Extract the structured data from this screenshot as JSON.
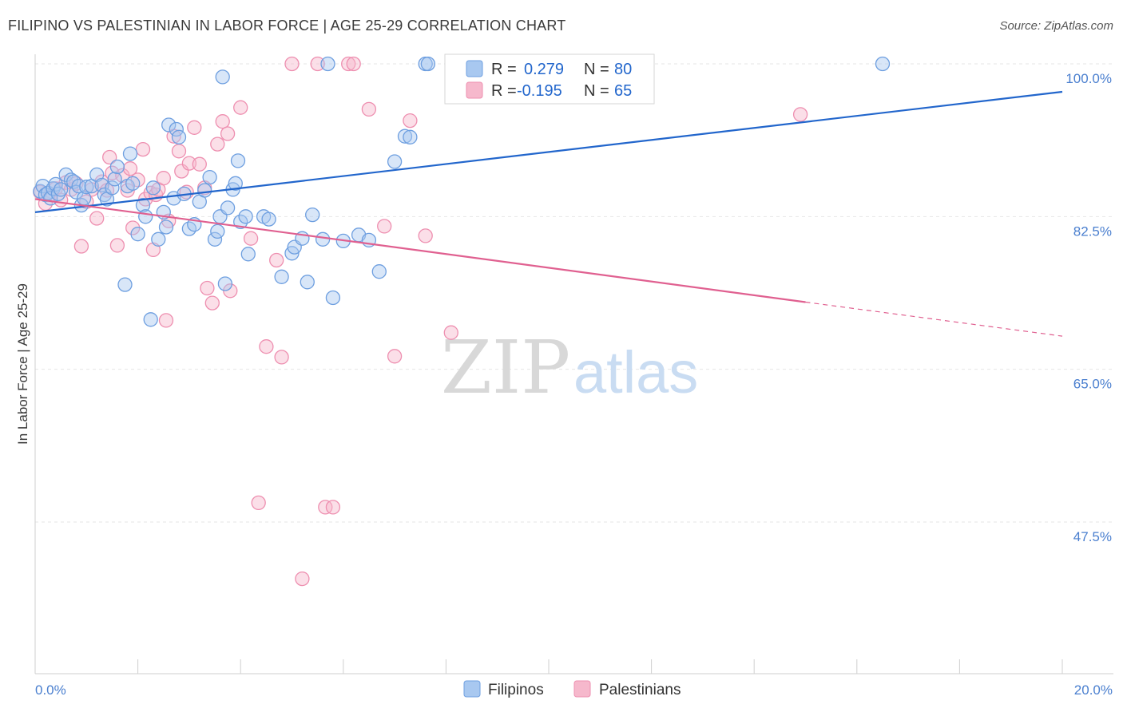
{
  "title": "FILIPINO VS PALESTINIAN IN LABOR FORCE | AGE 25-29 CORRELATION CHART",
  "source": "Source: ZipAtlas.com",
  "watermark": {
    "zip": "ZIP",
    "atlas": "atlas"
  },
  "colors": {
    "filipinos_fill": "#a8c8f0",
    "filipinos_stroke": "#6e9fe0",
    "filipinos_line": "#2266cc",
    "palestinians_fill": "#f6b8cc",
    "palestinians_stroke": "#ee8fb0",
    "palestinians_line": "#e06090",
    "tick_text": "#4a7fcf",
    "grid": "#e6e6e6"
  },
  "legend": {
    "rows": [
      {
        "r_label": "R =",
        "r_value": "0.279",
        "n_label": "N =",
        "n_value": "80"
      },
      {
        "r_label": "R =",
        "r_value": "-0.195",
        "n_label": "N =",
        "n_value": "65"
      }
    ]
  },
  "chart_data": {
    "type": "scatter",
    "title": "FILIPINO VS PALESTINIAN IN LABOR FORCE | AGE 25-29 CORRELATION CHART",
    "xlabel": "",
    "ylabel": "In Labor Force | Age 25-29",
    "xlim": [
      0,
      20
    ],
    "ylim": [
      32,
      101.5
    ],
    "x_tick_labels": [
      {
        "value": 0,
        "label": "0.0%"
      },
      {
        "value": 20,
        "label": "20.0%"
      }
    ],
    "y_tick_labels": [
      {
        "value": 100,
        "label": "100.0%"
      },
      {
        "value": 82.5,
        "label": "82.5%"
      },
      {
        "value": 65,
        "label": "65.0%"
      },
      {
        "value": 47.5,
        "label": "47.5%"
      }
    ],
    "grid": true,
    "legend_position": "top-center",
    "series": [
      {
        "name": "Filipinos",
        "stats": {
          "R": 0.279,
          "N": 80
        },
        "trend": {
          "x0": 0,
          "y0": 83.0,
          "x1": 20,
          "y1": 96.8
        },
        "points": [
          [
            0.1,
            85.4
          ],
          [
            0.15,
            86.0
          ],
          [
            0.2,
            85.0
          ],
          [
            0.25,
            85.2
          ],
          [
            0.3,
            84.6
          ],
          [
            0.35,
            85.7
          ],
          [
            0.4,
            86.2
          ],
          [
            0.45,
            85.1
          ],
          [
            0.5,
            85.6
          ],
          [
            0.6,
            87.3
          ],
          [
            0.7,
            86.7
          ],
          [
            0.75,
            86.5
          ],
          [
            0.8,
            85.3
          ],
          [
            0.85,
            86.0
          ],
          [
            0.9,
            83.8
          ],
          [
            0.95,
            84.6
          ],
          [
            1.0,
            85.9
          ],
          [
            1.1,
            86.0
          ],
          [
            1.2,
            87.3
          ],
          [
            1.3,
            86.1
          ],
          [
            1.35,
            85.0
          ],
          [
            1.4,
            84.5
          ],
          [
            1.5,
            85.8
          ],
          [
            1.55,
            86.8
          ],
          [
            1.6,
            88.2
          ],
          [
            1.75,
            74.7
          ],
          [
            1.8,
            86.0
          ],
          [
            1.85,
            89.7
          ],
          [
            1.9,
            86.3
          ],
          [
            2.0,
            80.5
          ],
          [
            2.1,
            83.8
          ],
          [
            2.15,
            82.5
          ],
          [
            2.25,
            70.7
          ],
          [
            2.3,
            85.8
          ],
          [
            2.4,
            79.9
          ],
          [
            2.5,
            83.0
          ],
          [
            2.55,
            81.3
          ],
          [
            2.6,
            93.0
          ],
          [
            2.7,
            84.6
          ],
          [
            2.75,
            92.5
          ],
          [
            2.8,
            91.6
          ],
          [
            2.9,
            85.1
          ],
          [
            3.0,
            81.1
          ],
          [
            3.1,
            81.6
          ],
          [
            3.2,
            84.2
          ],
          [
            3.3,
            85.5
          ],
          [
            3.4,
            87.0
          ],
          [
            3.5,
            79.9
          ],
          [
            3.55,
            80.8
          ],
          [
            3.6,
            82.5
          ],
          [
            3.7,
            74.8
          ],
          [
            3.75,
            83.5
          ],
          [
            3.85,
            85.6
          ],
          [
            3.9,
            86.3
          ],
          [
            3.95,
            88.9
          ],
          [
            4.0,
            81.9
          ],
          [
            4.1,
            82.5
          ],
          [
            4.15,
            78.2
          ],
          [
            4.45,
            82.5
          ],
          [
            4.55,
            82.2
          ],
          [
            4.8,
            75.6
          ],
          [
            5.0,
            78.3
          ],
          [
            5.05,
            79.0
          ],
          [
            5.2,
            80.0
          ],
          [
            5.3,
            75.0
          ],
          [
            5.4,
            82.7
          ],
          [
            5.6,
            79.9
          ],
          [
            5.7,
            100.0
          ],
          [
            5.8,
            73.2
          ],
          [
            6.0,
            79.7
          ],
          [
            6.3,
            80.4
          ],
          [
            6.5,
            79.8
          ],
          [
            6.7,
            76.2
          ],
          [
            7.0,
            88.8
          ],
          [
            7.2,
            91.7
          ],
          [
            7.3,
            91.6
          ],
          [
            7.6,
            100.0
          ],
          [
            7.65,
            100.0
          ],
          [
            3.65,
            98.5
          ],
          [
            16.5,
            100.0
          ]
        ]
      },
      {
        "name": "Palestinians",
        "stats": {
          "R": -0.195,
          "N": 65
        },
        "trend": {
          "x0": 0,
          "y0": 84.5,
          "x1": 15.0,
          "y1": 72.7,
          "dash_x1": 20,
          "dash_y1": 68.8
        },
        "points": [
          [
            0.1,
            85.3
          ],
          [
            0.2,
            84.0
          ],
          [
            0.3,
            85.0
          ],
          [
            0.4,
            85.7
          ],
          [
            0.5,
            84.4
          ],
          [
            0.6,
            86.4
          ],
          [
            0.7,
            85.6
          ],
          [
            0.8,
            86.3
          ],
          [
            0.9,
            79.1
          ],
          [
            1.0,
            84.2
          ],
          [
            1.1,
            85.6
          ],
          [
            1.2,
            82.3
          ],
          [
            1.3,
            86.5
          ],
          [
            1.4,
            85.5
          ],
          [
            1.45,
            89.3
          ],
          [
            1.5,
            87.5
          ],
          [
            1.6,
            79.2
          ],
          [
            1.7,
            87.2
          ],
          [
            1.8,
            85.5
          ],
          [
            1.85,
            88.0
          ],
          [
            1.9,
            81.2
          ],
          [
            2.0,
            86.7
          ],
          [
            2.1,
            90.2
          ],
          [
            2.15,
            84.5
          ],
          [
            2.25,
            85.2
          ],
          [
            2.3,
            78.7
          ],
          [
            2.35,
            85.0
          ],
          [
            2.4,
            85.6
          ],
          [
            2.5,
            86.9
          ],
          [
            2.55,
            70.6
          ],
          [
            2.6,
            82.0
          ],
          [
            2.7,
            91.7
          ],
          [
            2.8,
            90.0
          ],
          [
            2.85,
            87.7
          ],
          [
            2.95,
            85.3
          ],
          [
            3.0,
            88.6
          ],
          [
            3.1,
            92.7
          ],
          [
            3.2,
            88.5
          ],
          [
            3.3,
            85.8
          ],
          [
            3.35,
            74.3
          ],
          [
            3.45,
            72.6
          ],
          [
            3.55,
            90.8
          ],
          [
            3.65,
            93.4
          ],
          [
            3.75,
            92.0
          ],
          [
            3.8,
            74.0
          ],
          [
            4.0,
            95.0
          ],
          [
            4.2,
            80.0
          ],
          [
            4.35,
            49.7
          ],
          [
            4.5,
            67.6
          ],
          [
            4.7,
            77.5
          ],
          [
            4.8,
            66.4
          ],
          [
            5.0,
            100.0
          ],
          [
            5.2,
            41.0
          ],
          [
            5.5,
            100.0
          ],
          [
            5.65,
            49.2
          ],
          [
            5.8,
            49.2
          ],
          [
            6.1,
            100.0
          ],
          [
            6.2,
            100.0
          ],
          [
            6.5,
            94.8
          ],
          [
            6.8,
            81.4
          ],
          [
            7.0,
            66.5
          ],
          [
            7.3,
            93.5
          ],
          [
            7.6,
            80.3
          ],
          [
            8.1,
            69.2
          ],
          [
            14.9,
            94.2
          ]
        ]
      }
    ]
  }
}
